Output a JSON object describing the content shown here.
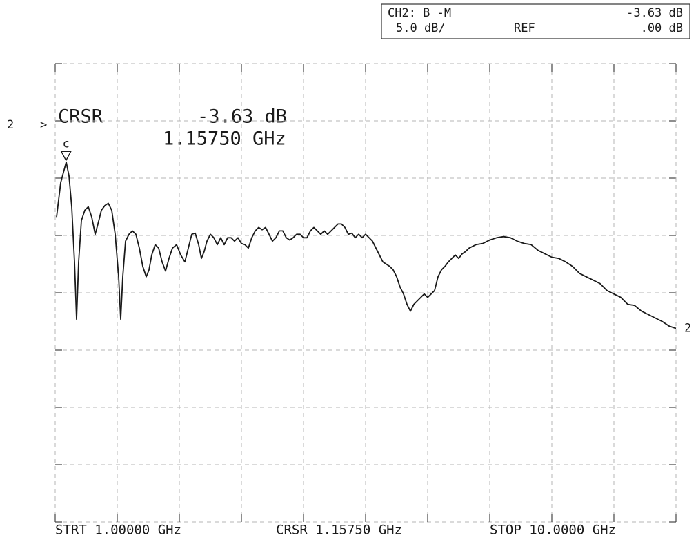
{
  "chart_data": {
    "type": "line",
    "status": {
      "channel": "CH2: B  -M",
      "value": "-3.63 dB",
      "scale": "5.0 dB/",
      "ref_word": "REF",
      "ref_value": ".00 dB"
    },
    "readout": {
      "name": "CRSR",
      "value": "-3.63 dB",
      "frequency": "1.15750 GHz"
    },
    "footer": {
      "start": "STRT 1.00000 GHz",
      "cursor": "CRSR 1.15750 GHz",
      "stop": "STOP 10.0000 GHz"
    },
    "trace_label": "2",
    "cursor": {
      "x": 1.1575,
      "y": -3.63,
      "label": "c"
    },
    "color": "#1a1a1a",
    "grid": true,
    "xlim": [
      1,
      10
    ],
    "ylim": [
      -35,
      5
    ],
    "xticks": [
      1,
      1.9,
      2.8,
      3.7,
      4.6,
      5.5,
      6.4,
      7.3,
      8.2,
      9.1,
      10
    ],
    "yticks": [
      5,
      0,
      -5,
      -10,
      -15,
      -20,
      -25,
      -30,
      -35
    ],
    "x": [
      1.02,
      1.05,
      1.08,
      1.12,
      1.16,
      1.2,
      1.24,
      1.28,
      1.31,
      1.34,
      1.38,
      1.43,
      1.48,
      1.53,
      1.58,
      1.62,
      1.67,
      1.72,
      1.77,
      1.82,
      1.87,
      1.92,
      1.95,
      1.98,
      2.02,
      2.07,
      2.12,
      2.17,
      2.22,
      2.27,
      2.32,
      2.36,
      2.4,
      2.45,
      2.5,
      2.55,
      2.6,
      2.65,
      2.7,
      2.76,
      2.82,
      2.88,
      2.93,
      2.98,
      3.03,
      3.08,
      3.12,
      3.16,
      3.2,
      3.25,
      3.3,
      3.35,
      3.4,
      3.45,
      3.5,
      3.55,
      3.6,
      3.65,
      3.7,
      3.75,
      3.8,
      3.85,
      3.9,
      3.95,
      4.0,
      4.05,
      4.1,
      4.15,
      4.2,
      4.25,
      4.3,
      4.35,
      4.4,
      4.45,
      4.5,
      4.55,
      4.6,
      4.65,
      4.7,
      4.75,
      4.8,
      4.85,
      4.9,
      4.95,
      5.0,
      5.05,
      5.1,
      5.15,
      5.2,
      5.25,
      5.3,
      5.35,
      5.4,
      5.45,
      5.5,
      5.55,
      5.6,
      5.65,
      5.7,
      5.75,
      5.8,
      5.85,
      5.9,
      5.95,
      6.0,
      6.05,
      6.1,
      6.15,
      6.2,
      6.25,
      6.3,
      6.35,
      6.4,
      6.45,
      6.5,
      6.55,
      6.6,
      6.65,
      6.7,
      6.75,
      6.8,
      6.85,
      6.9,
      6.95,
      7.0,
      7.1,
      7.2,
      7.3,
      7.4,
      7.5,
      7.6,
      7.7,
      7.8,
      7.9,
      8.0,
      8.1,
      8.2,
      8.3,
      8.4,
      8.5,
      8.6,
      8.7,
      8.8,
      8.9,
      9.0,
      9.1,
      9.2,
      9.3,
      9.4,
      9.5,
      9.6,
      9.7,
      9.8,
      9.9,
      10.0
    ],
    "values": [
      -8.4,
      -6.9,
      -5.4,
      -4.5,
      -3.6,
      -4.8,
      -7.5,
      -12.3,
      -17.3,
      -12.3,
      -8.7,
      -7.8,
      -7.5,
      -8.4,
      -9.9,
      -9.0,
      -7.8,
      -7.4,
      -7.2,
      -7.8,
      -9.9,
      -13.6,
      -17.3,
      -13.6,
      -10.5,
      -9.9,
      -9.6,
      -9.9,
      -11.1,
      -12.7,
      -13.6,
      -13.0,
      -11.7,
      -10.8,
      -11.1,
      -12.3,
      -13.1,
      -12.0,
      -11.1,
      -10.8,
      -11.7,
      -12.3,
      -11.1,
      -9.9,
      -9.8,
      -10.8,
      -12.0,
      -11.4,
      -10.5,
      -9.9,
      -10.2,
      -10.8,
      -10.2,
      -10.8,
      -10.2,
      -10.2,
      -10.5,
      -10.2,
      -10.7,
      -10.8,
      -11.1,
      -10.2,
      -9.6,
      -9.3,
      -9.5,
      -9.3,
      -9.9,
      -10.5,
      -10.2,
      -9.6,
      -9.6,
      -10.2,
      -10.4,
      -10.2,
      -9.9,
      -9.9,
      -10.2,
      -10.2,
      -9.6,
      -9.3,
      -9.6,
      -9.9,
      -9.6,
      -9.9,
      -9.6,
      -9.3,
      -9.0,
      -9.0,
      -9.3,
      -9.9,
      -9.8,
      -10.2,
      -9.9,
      -10.2,
      -9.9,
      -10.2,
      -10.5,
      -11.1,
      -11.7,
      -12.3,
      -12.5,
      -12.7,
      -13.0,
      -13.6,
      -14.5,
      -15.1,
      -16.0,
      -16.6,
      -16.0,
      -15.7,
      -15.4,
      -15.1,
      -15.4,
      -15.1,
      -14.8,
      -13.6,
      -13.0,
      -12.7,
      -12.3,
      -12.0,
      -11.7,
      -12.0,
      -11.6,
      -11.4,
      -11.1,
      -10.8,
      -10.7,
      -10.4,
      -10.2,
      -10.1,
      -10.2,
      -10.5,
      -10.7,
      -10.8,
      -11.3,
      -11.6,
      -11.9,
      -12.0,
      -12.3,
      -12.7,
      -13.3,
      -13.6,
      -13.9,
      -14.2,
      -14.8,
      -15.1,
      -15.4,
      -16.0,
      -16.1,
      -16.6,
      -16.9,
      -17.2,
      -17.5,
      -17.9,
      -18.1
    ]
  }
}
